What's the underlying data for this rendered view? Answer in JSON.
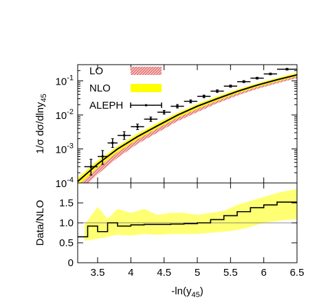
{
  "chart_data": [
    {
      "type": "line",
      "panel": "top",
      "ylabel": "1/σ dσ/dlny",
      "ylabel_sub": "45",
      "yscale": "log",
      "xlim": [
        3.2,
        6.5
      ],
      "ylim": [
        0.0001,
        0.3
      ],
      "yticks": [
        {
          "value": 0.1,
          "base": "10",
          "exp": "-1"
        },
        {
          "value": 0.01,
          "base": "10",
          "exp": "-2"
        },
        {
          "value": 0.001,
          "base": "10",
          "exp": "-3"
        },
        {
          "value": 0.0001,
          "base": "10",
          "exp": "-4"
        }
      ],
      "legend_position": "top-left",
      "legend": [
        {
          "label": "LO",
          "color": "#e05a5a",
          "style": "hatched-band"
        },
        {
          "label": "NLO",
          "color": "#ffff00",
          "style": "band"
        },
        {
          "label": "ALEPH",
          "color": "#000000",
          "style": "points-with-errors"
        }
      ],
      "series": [
        {
          "name": "LO",
          "x": [
            3.2,
            3.5,
            3.8,
            4.1,
            4.4,
            4.7,
            5.0,
            5.3,
            5.6,
            5.9,
            6.2,
            6.5
          ],
          "low": [
            5e-05,
            0.00018,
            0.00055,
            0.0014,
            0.003,
            0.0065,
            0.012,
            0.022,
            0.037,
            0.058,
            0.085,
            0.12
          ],
          "high": [
            9e-05,
            0.00032,
            0.0009,
            0.0022,
            0.0046,
            0.0095,
            0.017,
            0.03,
            0.05,
            0.076,
            0.11,
            0.16
          ]
        },
        {
          "name": "NLO",
          "x": [
            3.2,
            3.5,
            3.8,
            4.1,
            4.4,
            4.7,
            5.0,
            5.3,
            5.6,
            5.9,
            6.2,
            6.5
          ],
          "low": [
            8e-05,
            0.00028,
            0.0008,
            0.0019,
            0.004,
            0.0082,
            0.015,
            0.026,
            0.043,
            0.066,
            0.096,
            0.135
          ],
          "high": [
            0.00014,
            0.00045,
            0.0012,
            0.0028,
            0.0058,
            0.0115,
            0.021,
            0.035,
            0.056,
            0.085,
            0.122,
            0.175
          ],
          "central": [
            0.00011,
            0.00036,
            0.001,
            0.0023,
            0.0048,
            0.0098,
            0.018,
            0.03,
            0.049,
            0.075,
            0.108,
            0.15
          ]
        },
        {
          "name": "ALEPH",
          "bin_edges": [
            3.3,
            3.5,
            3.65,
            3.8,
            4.0,
            4.2,
            4.4,
            4.6,
            4.8,
            5.0,
            5.2,
            5.4,
            5.6,
            5.8,
            6.0,
            6.2,
            6.5
          ],
          "y": [
            0.0003,
            0.0006,
            0.0015,
            0.0025,
            0.0045,
            0.0075,
            0.012,
            0.018,
            0.025,
            0.035,
            0.05,
            0.07,
            0.095,
            0.12,
            0.16,
            0.22
          ],
          "y_err_low": [
            0.00013,
            0.00025,
            0.0004,
            0.0006,
            0.0008,
            0.0011,
            0.0015,
            0.002,
            0.0025,
            0.003,
            0.004,
            0.005,
            0.006,
            0.007,
            0.009,
            0.012
          ],
          "y_err_high": [
            0.0002,
            0.0003,
            0.0005,
            0.0007,
            0.0009,
            0.0012,
            0.0016,
            0.0022,
            0.0027,
            0.0033,
            0.0045,
            0.0055,
            0.007,
            0.008,
            0.01,
            0.015
          ]
        }
      ]
    },
    {
      "type": "line",
      "panel": "bottom",
      "ylabel": "Data/NLO",
      "xlabel": "-ln(y",
      "xlabel_sub": "45",
      "xlabel_close": ")",
      "xlim": [
        3.2,
        6.5
      ],
      "ylim": [
        0,
        2
      ],
      "xticks": [
        "3.5",
        "4",
        "4.5",
        "5",
        "5.5",
        "6",
        "6.5"
      ],
      "xtick_values": [
        3.5,
        4,
        4.5,
        5,
        5.5,
        6,
        6.5
      ],
      "yticks": [
        "0",
        "0.5",
        "1.0",
        "1.5"
      ],
      "ytick_values": [
        0,
        0.5,
        1.0,
        1.5
      ],
      "reference_line": 1.0,
      "series": [
        {
          "name": "NLO band",
          "color": "#ffff00",
          "x": [
            3.3,
            3.5,
            3.65,
            3.8,
            4.0,
            4.2,
            4.4,
            4.6,
            4.8,
            5.0,
            5.2,
            5.4,
            5.6,
            5.8,
            6.0,
            6.2,
            6.5
          ],
          "low": [
            0.55,
            0.6,
            0.65,
            0.7,
            0.68,
            0.72,
            0.7,
            0.72,
            0.72,
            0.72,
            0.75,
            0.78,
            0.82,
            0.9,
            1.0,
            1.05,
            1.1
          ],
          "high": [
            0.95,
            1.4,
            1.1,
            1.35,
            1.25,
            1.35,
            1.2,
            1.25,
            1.25,
            1.2,
            1.25,
            1.3,
            1.45,
            1.55,
            1.65,
            1.75,
            1.85
          ]
        },
        {
          "name": "Data/NLO",
          "color": "#000000",
          "bin_edges": [
            3.15,
            3.35,
            3.5,
            3.65,
            3.8,
            4.0,
            4.2,
            4.4,
            4.6,
            4.8,
            5.0,
            5.2,
            5.4,
            5.6,
            5.8,
            6.0,
            6.2,
            6.5
          ],
          "y": [
            0.65,
            0.92,
            0.78,
            1.0,
            0.92,
            0.95,
            0.96,
            0.96,
            0.97,
            0.98,
            1.0,
            1.08,
            1.18,
            1.28,
            1.38,
            1.45,
            1.52
          ]
        }
      ]
    }
  ]
}
